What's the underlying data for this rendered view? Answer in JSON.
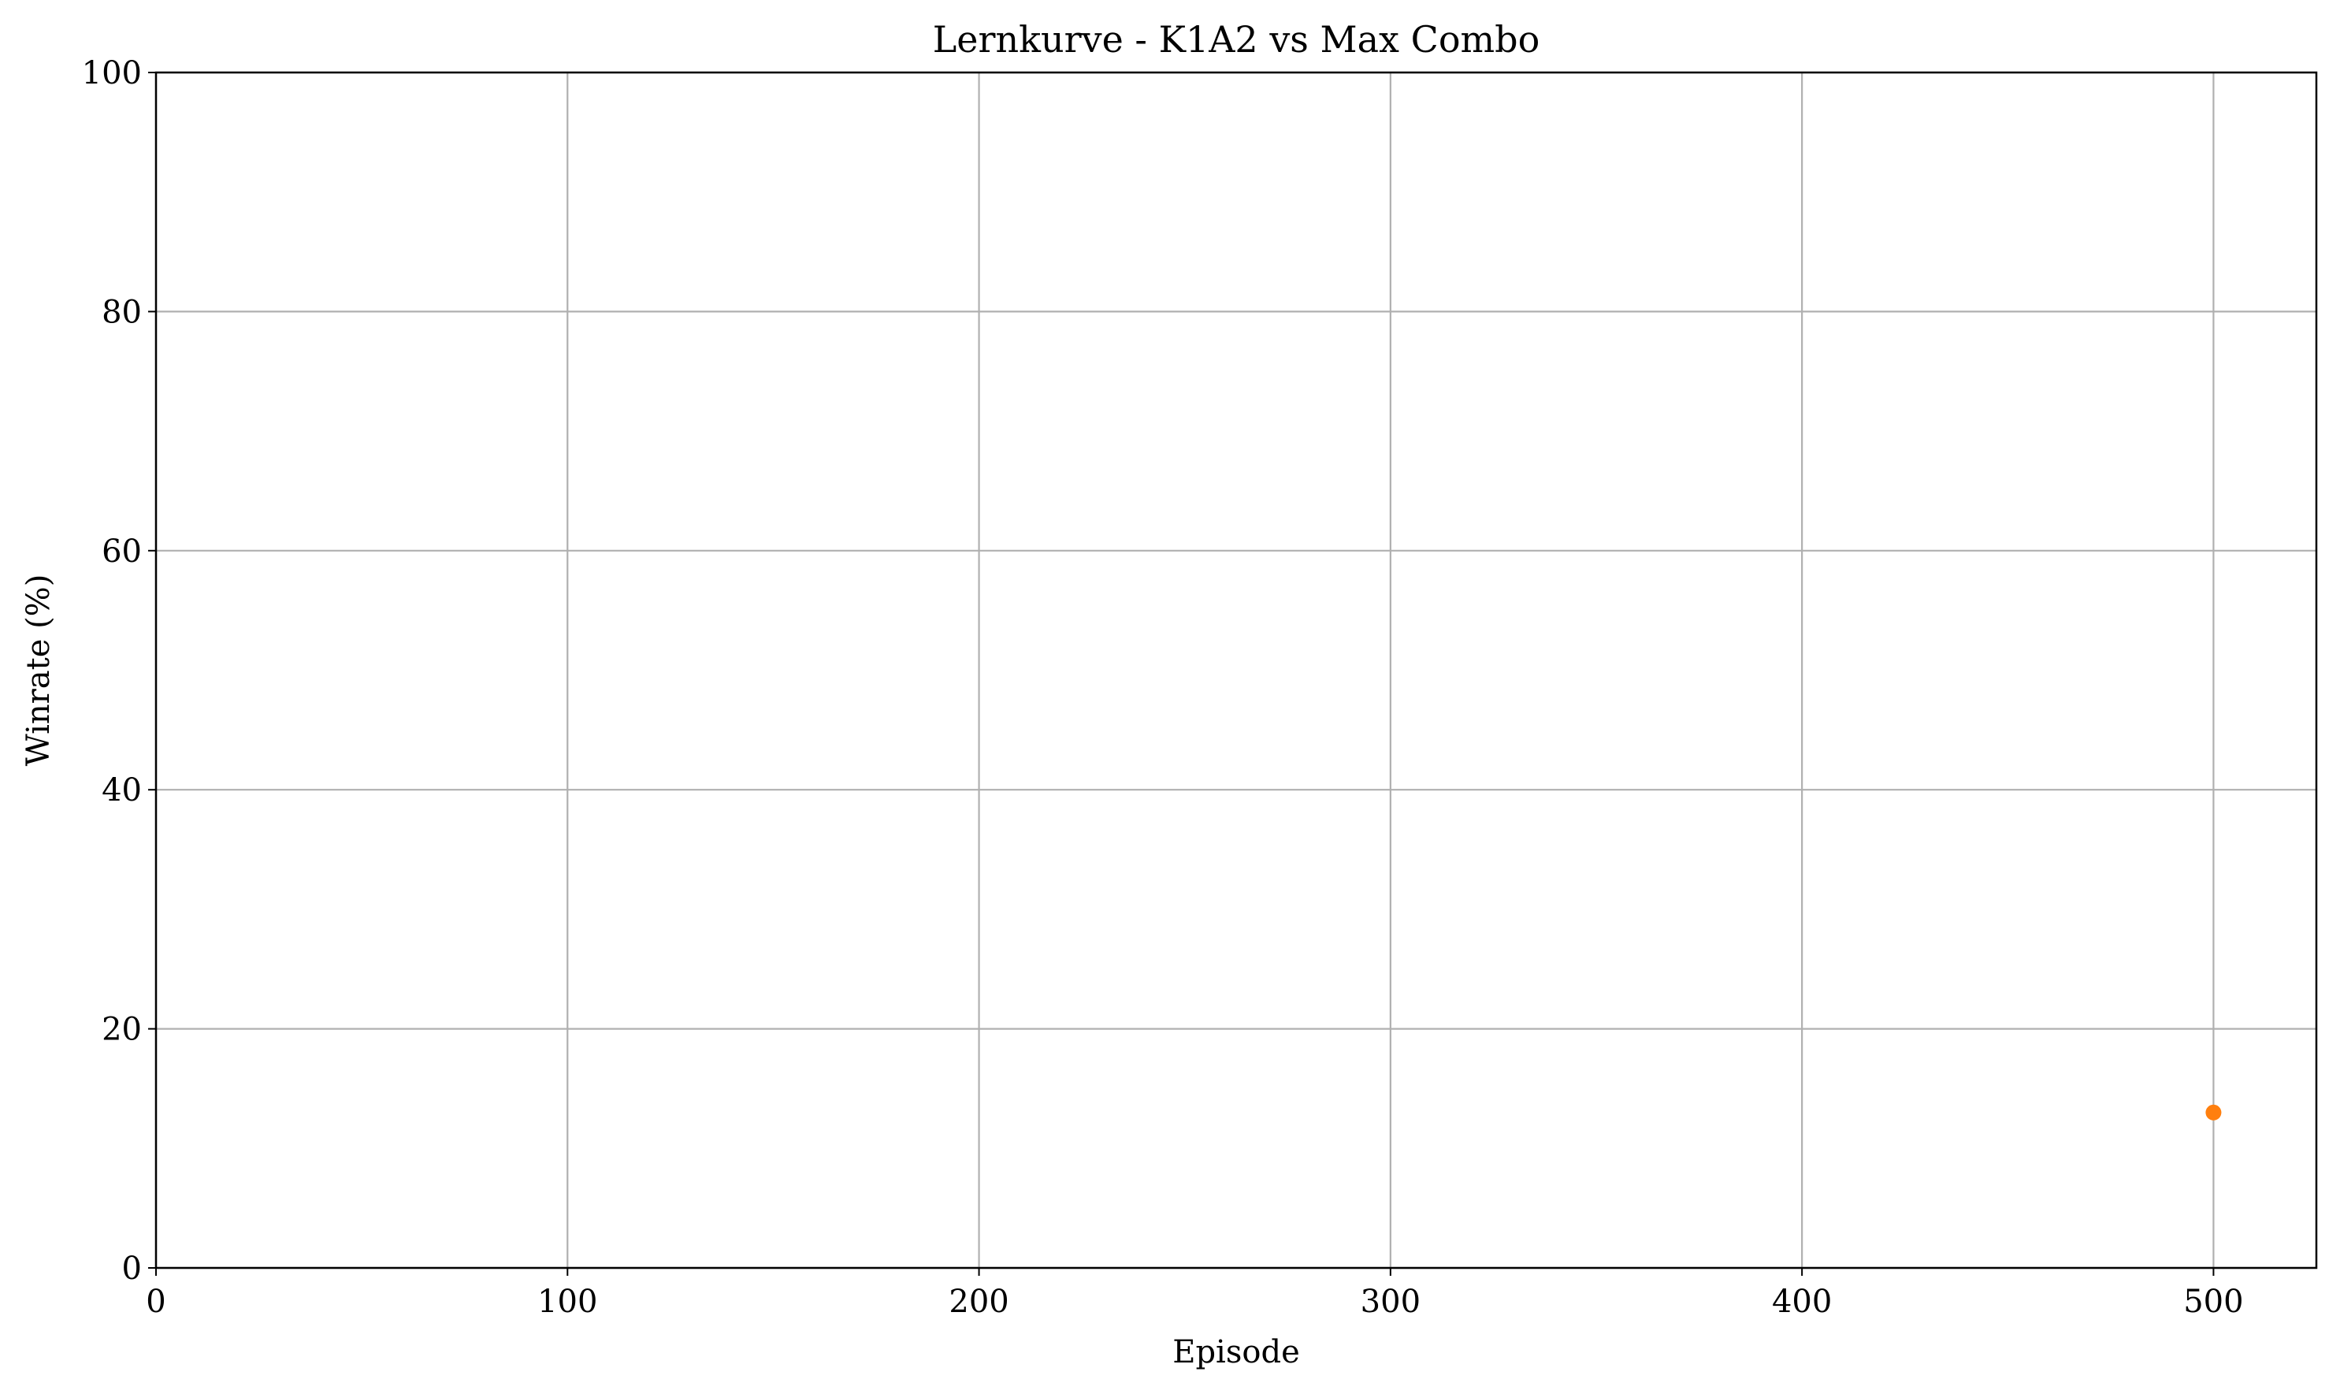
{
  "chart_data": {
    "type": "scatter",
    "title": "Lernkurve - K1A2 vs Max Combo",
    "xlabel": "Episode",
    "ylabel": "Winrate (%)",
    "xlim": [
      0,
      525
    ],
    "ylim": [
      0,
      100
    ],
    "xticks": [
      0,
      100,
      200,
      300,
      400,
      500
    ],
    "yticks": [
      0,
      20,
      40,
      60,
      80,
      100
    ],
    "grid": true,
    "series": [
      {
        "x": [
          500
        ],
        "y": [
          13
        ],
        "color": "#ff7f0e"
      }
    ]
  }
}
